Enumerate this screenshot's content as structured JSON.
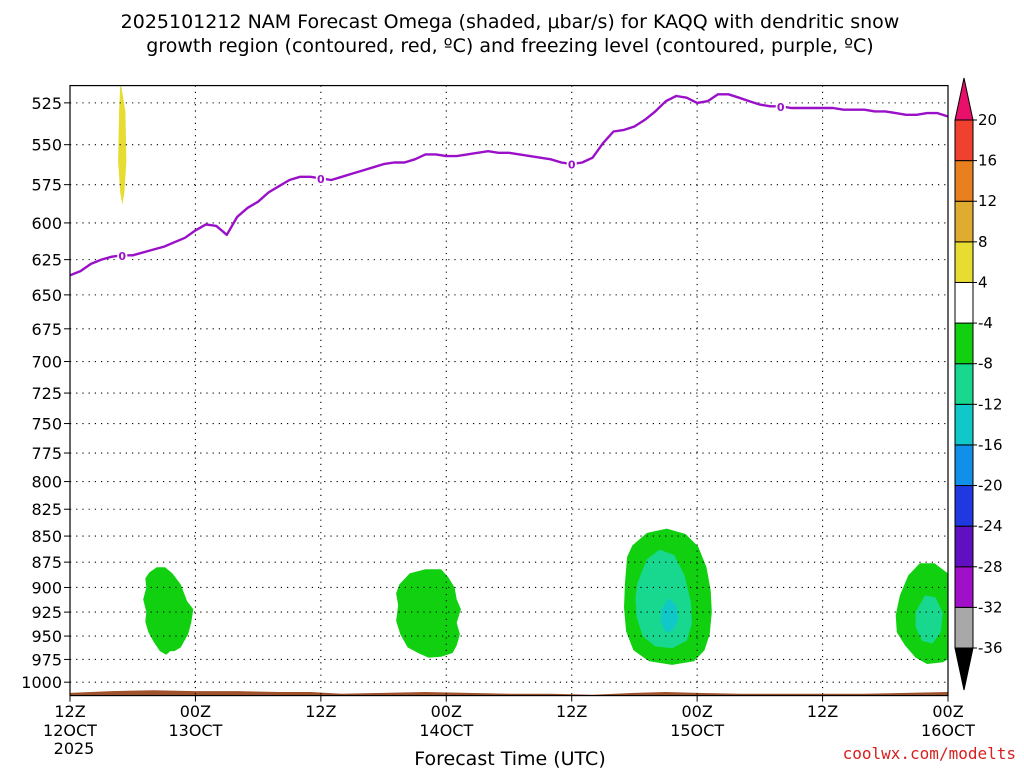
{
  "chart_data": {
    "type": "time-height cross section",
    "title_line1": "2025101212 NAM Forecast Omega (shaded, μbar/s) for KAQQ with dendritic snow",
    "title_line2": "growth region (contoured, red, ºC) and freezing level (contoured, purple, ºC)",
    "xlabel": "Forecast Time (UTC)",
    "credit": "coolwx.com/modelts",
    "credit_color": "#d62020",
    "y_ticks": [
      525,
      550,
      575,
      600,
      625,
      650,
      675,
      700,
      725,
      750,
      775,
      800,
      825,
      850,
      875,
      900,
      925,
      950,
      975,
      1000
    ],
    "y_range": [
      515,
      1015
    ],
    "x_range_hours": [
      0,
      84
    ],
    "x_ticks": [
      {
        "hour": 0,
        "line1": "12Z",
        "line2": "12OCT",
        "line3": "2025"
      },
      {
        "hour": 12,
        "line1": "00Z",
        "line2": "13OCT"
      },
      {
        "hour": 24,
        "line1": "12Z"
      },
      {
        "hour": 36,
        "line1": "00Z",
        "line2": "14OCT"
      },
      {
        "hour": 48,
        "line1": "12Z"
      },
      {
        "hour": 60,
        "line1": "00Z",
        "line2": "15OCT"
      },
      {
        "hour": 72,
        "line1": "12Z"
      },
      {
        "hour": 84,
        "line1": "00Z",
        "line2": "16OCT"
      }
    ],
    "freezing_level": {
      "label": "0",
      "color": "#9a10c8",
      "label_hours": [
        5,
        24,
        48,
        68
      ],
      "points": [
        [
          0,
          636
        ],
        [
          1,
          633
        ],
        [
          2,
          628
        ],
        [
          3,
          625
        ],
        [
          4,
          623
        ],
        [
          5,
          622
        ],
        [
          6,
          622
        ],
        [
          7,
          620
        ],
        [
          8,
          618
        ],
        [
          9,
          616
        ],
        [
          10,
          613
        ],
        [
          11,
          610
        ],
        [
          12,
          605
        ],
        [
          13,
          601
        ],
        [
          14,
          602
        ],
        [
          15,
          608
        ],
        [
          16,
          596
        ],
        [
          17,
          590
        ],
        [
          18,
          586
        ],
        [
          19,
          580
        ],
        [
          20,
          576
        ],
        [
          21,
          572
        ],
        [
          22,
          570
        ],
        [
          23,
          570
        ],
        [
          24,
          571
        ],
        [
          25,
          572
        ],
        [
          26,
          570
        ],
        [
          27,
          568
        ],
        [
          28,
          566
        ],
        [
          29,
          564
        ],
        [
          30,
          562
        ],
        [
          31,
          561
        ],
        [
          32,
          561
        ],
        [
          33,
          559
        ],
        [
          34,
          556
        ],
        [
          35,
          556
        ],
        [
          36,
          557
        ],
        [
          37,
          557
        ],
        [
          38,
          556
        ],
        [
          39,
          555
        ],
        [
          40,
          554
        ],
        [
          41,
          555
        ],
        [
          42,
          555
        ],
        [
          43,
          556
        ],
        [
          44,
          557
        ],
        [
          45,
          558
        ],
        [
          46,
          559
        ],
        [
          47,
          561
        ],
        [
          48,
          562
        ],
        [
          49,
          561
        ],
        [
          50,
          558
        ],
        [
          51,
          549
        ],
        [
          52,
          542
        ],
        [
          53,
          541
        ],
        [
          54,
          539
        ],
        [
          55,
          535
        ],
        [
          56,
          530
        ],
        [
          57,
          524
        ],
        [
          58,
          521
        ],
        [
          59,
          522
        ],
        [
          60,
          525
        ],
        [
          61,
          524
        ],
        [
          62,
          520
        ],
        [
          63,
          520
        ],
        [
          64,
          522
        ],
        [
          65,
          524
        ],
        [
          66,
          526
        ],
        [
          67,
          527
        ],
        [
          68,
          527
        ],
        [
          69,
          528
        ],
        [
          70,
          528
        ],
        [
          71,
          528
        ],
        [
          72,
          528
        ],
        [
          73,
          528
        ],
        [
          74,
          529
        ],
        [
          75,
          529
        ],
        [
          76,
          529
        ],
        [
          77,
          530
        ],
        [
          78,
          530
        ],
        [
          79,
          531
        ],
        [
          80,
          532
        ],
        [
          81,
          532
        ],
        [
          82,
          531
        ],
        [
          83,
          531
        ],
        [
          84,
          533
        ]
      ]
    },
    "shaded_regions": [
      {
        "name": "omega-pos-upper",
        "value_range": "4 to 8",
        "color": "#e6dc32",
        "polygon": [
          [
            4.9,
            515
          ],
          [
            5.3,
            530
          ],
          [
            5.4,
            560
          ],
          [
            5.2,
            580
          ],
          [
            5.0,
            588
          ],
          [
            4.8,
            580
          ],
          [
            4.6,
            560
          ],
          [
            4.7,
            530
          ],
          [
            4.8,
            515
          ]
        ]
      },
      {
        "name": "omega-neg-cell-1",
        "value_range": "-4 to -8",
        "color": "#10d010",
        "polygon": [
          [
            7.2,
            891
          ],
          [
            7.6,
            885
          ],
          [
            8.3,
            880
          ],
          [
            9.1,
            880
          ],
          [
            9.8,
            886
          ],
          [
            10.6,
            897
          ],
          [
            11.2,
            914
          ],
          [
            11.8,
            922
          ],
          [
            11.6,
            936
          ],
          [
            11.3,
            948
          ],
          [
            10.6,
            962
          ],
          [
            10.0,
            966
          ],
          [
            9.6,
            966
          ],
          [
            9.2,
            970
          ],
          [
            8.6,
            966
          ],
          [
            8.0,
            956
          ],
          [
            7.5,
            946
          ],
          [
            7.2,
            935
          ],
          [
            7.3,
            925
          ],
          [
            7.0,
            912
          ],
          [
            7.3,
            900
          ]
        ]
      },
      {
        "name": "omega-neg-cell-2",
        "value_range": "-4 to -8",
        "color": "#10d010",
        "polygon": [
          [
            31.5,
            897
          ],
          [
            32.5,
            886
          ],
          [
            34.0,
            882
          ],
          [
            35.5,
            882
          ],
          [
            36.2,
            890
          ],
          [
            36.8,
            900
          ],
          [
            37.0,
            912
          ],
          [
            37.4,
            922
          ],
          [
            37.0,
            936
          ],
          [
            37.3,
            948
          ],
          [
            37.0,
            960
          ],
          [
            36.6,
            968
          ],
          [
            35.5,
            972
          ],
          [
            34.3,
            973
          ],
          [
            33.3,
            968
          ],
          [
            32.3,
            962
          ],
          [
            31.6,
            948
          ],
          [
            31.2,
            934
          ],
          [
            31.4,
            918
          ],
          [
            31.2,
            906
          ]
        ]
      },
      {
        "name": "omega-neg-cell-3",
        "value_range": "-4 to -8",
        "color": "#10d010",
        "polygon": [
          [
            53.3,
            870
          ],
          [
            53.8,
            859
          ],
          [
            55.2,
            847
          ],
          [
            57.1,
            843
          ],
          [
            58.9,
            848
          ],
          [
            60.1,
            860
          ],
          [
            60.9,
            880
          ],
          [
            61.3,
            903
          ],
          [
            61.4,
            925
          ],
          [
            61.2,
            948
          ],
          [
            60.7,
            965
          ],
          [
            59.7,
            977
          ],
          [
            57.6,
            981
          ],
          [
            55.4,
            977
          ],
          [
            53.9,
            965
          ],
          [
            53.2,
            945
          ],
          [
            53.0,
            920
          ],
          [
            53.1,
            895
          ]
        ]
      },
      {
        "name": "omega-neg-cell-3-core",
        "value_range": "-8 to -12",
        "color": "#18d890",
        "polygon": [
          [
            54.3,
            895
          ],
          [
            55.2,
            872
          ],
          [
            56.4,
            863
          ],
          [
            57.8,
            868
          ],
          [
            58.8,
            888
          ],
          [
            59.4,
            915
          ],
          [
            59.5,
            937
          ],
          [
            59.0,
            955
          ],
          [
            57.6,
            963
          ],
          [
            56.0,
            961
          ],
          [
            54.8,
            950
          ],
          [
            54.2,
            930
          ],
          [
            54.1,
            910
          ]
        ]
      },
      {
        "name": "omega-neg-cell-3-inner",
        "value_range": "-12 to -16",
        "color": "#10c8c8",
        "polygon": [
          [
            56.6,
            922
          ],
          [
            57.3,
            911
          ],
          [
            58.0,
            918
          ],
          [
            58.2,
            932
          ],
          [
            57.7,
            944
          ],
          [
            57.0,
            946
          ],
          [
            56.5,
            935
          ]
        ]
      },
      {
        "name": "omega-neg-cell-4",
        "value_range": "-4 to -8",
        "color": "#10d010",
        "polygon": [
          [
            79.4,
            908
          ],
          [
            80.2,
            888
          ],
          [
            81.3,
            876
          ],
          [
            82.7,
            876
          ],
          [
            84,
            886
          ],
          [
            84,
            975
          ],
          [
            83.5,
            978
          ],
          [
            82.0,
            980
          ],
          [
            80.9,
            973
          ],
          [
            79.9,
            960
          ],
          [
            79.1,
            946
          ],
          [
            79.0,
            928
          ]
        ]
      },
      {
        "name": "omega-neg-cell-4-core",
        "value_range": "-8 to -12",
        "color": "#18d890",
        "polygon": [
          [
            80.9,
            925
          ],
          [
            81.8,
            908
          ],
          [
            82.8,
            910
          ],
          [
            83.5,
            926
          ],
          [
            83.3,
            946
          ],
          [
            82.5,
            958
          ],
          [
            81.5,
            955
          ],
          [
            80.9,
            940
          ]
        ]
      },
      {
        "name": "terrain",
        "value_range": "below ground",
        "color": "#a0522d",
        "polygon": [
          [
            0,
            1012
          ],
          [
            4,
            1010
          ],
          [
            8,
            1009
          ],
          [
            12,
            1010
          ],
          [
            16,
            1010
          ],
          [
            20,
            1011
          ],
          [
            23,
            1011
          ],
          [
            26,
            1013
          ],
          [
            30,
            1012
          ],
          [
            34,
            1011
          ],
          [
            38,
            1012
          ],
          [
            42,
            1013
          ],
          [
            46,
            1013
          ],
          [
            50,
            1014
          ],
          [
            54,
            1012
          ],
          [
            57,
            1011
          ],
          [
            60,
            1012
          ],
          [
            64,
            1013
          ],
          [
            68,
            1013
          ],
          [
            72,
            1013
          ],
          [
            76,
            1013
          ],
          [
            80,
            1012
          ],
          [
            84,
            1011
          ],
          [
            84,
            1024
          ],
          [
            0,
            1024
          ]
        ]
      }
    ],
    "colorbar": {
      "colors": [
        "#000000",
        "#a8a8a8",
        "#a010c8",
        "#6010c0",
        "#2038e0",
        "#1090e8",
        "#10c8c8",
        "#18d890",
        "#10d010",
        "#ffffff",
        "#e6dc32",
        "#e0ac30",
        "#e88020",
        "#f04030",
        "#e8106a"
      ],
      "labels": [
        "-36",
        "-32",
        "-28",
        "-24",
        "-20",
        "-16",
        "-12",
        "-8",
        "-4",
        "4",
        "8",
        "12",
        "16",
        "20"
      ]
    }
  }
}
